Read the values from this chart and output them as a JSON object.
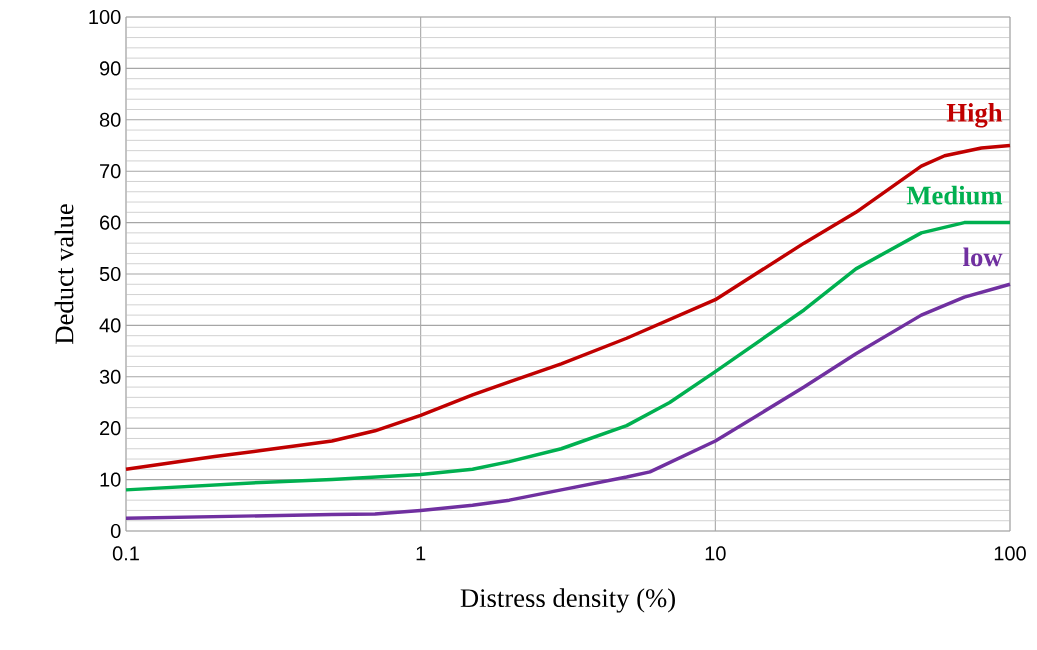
{
  "chart_data": {
    "type": "line",
    "xlabel": "Distress density (%)",
    "ylabel": "Deduct value",
    "log": "x",
    "grid": true,
    "legend": false,
    "marker": "none",
    "line_style": "solid",
    "xlim": [
      0.1,
      100
    ],
    "ylim": [
      0,
      100
    ],
    "xticks": [
      0.1,
      1,
      10,
      100
    ],
    "yticks": [
      0,
      10,
      20,
      30,
      40,
      50,
      60,
      70,
      80,
      90,
      100
    ],
    "series": [
      {
        "name": "High",
        "color": "#c00000",
        "x": [
          0.1,
          0.2,
          0.3,
          0.5,
          0.7,
          1,
          1.5,
          2,
          3,
          5,
          10,
          20,
          30,
          50,
          60,
          80,
          100
        ],
        "values": [
          12,
          14.5,
          15.8,
          17.5,
          19.5,
          22.5,
          26.5,
          29,
          32.5,
          37.5,
          45,
          56,
          62,
          71,
          73,
          74.5,
          75
        ]
      },
      {
        "name": "Medium",
        "color": "#00b050",
        "x": [
          0.1,
          0.3,
          0.5,
          1,
          1.5,
          2,
          3,
          5,
          7,
          10,
          20,
          30,
          50,
          70,
          100
        ],
        "values": [
          8,
          9.5,
          10,
          11,
          12,
          13.5,
          16,
          20.5,
          25,
          31,
          43,
          51,
          58,
          60,
          60
        ]
      },
      {
        "name": "low",
        "color": "#7030a0",
        "x": [
          0.1,
          0.5,
          0.7,
          1,
          1.5,
          2,
          3,
          5,
          6,
          10,
          20,
          30,
          50,
          70,
          100
        ],
        "values": [
          2.5,
          3.2,
          3.3,
          4,
          5,
          6,
          8,
          10.5,
          11.5,
          17.5,
          28,
          34.5,
          42,
          45.5,
          48
        ]
      }
    ]
  }
}
